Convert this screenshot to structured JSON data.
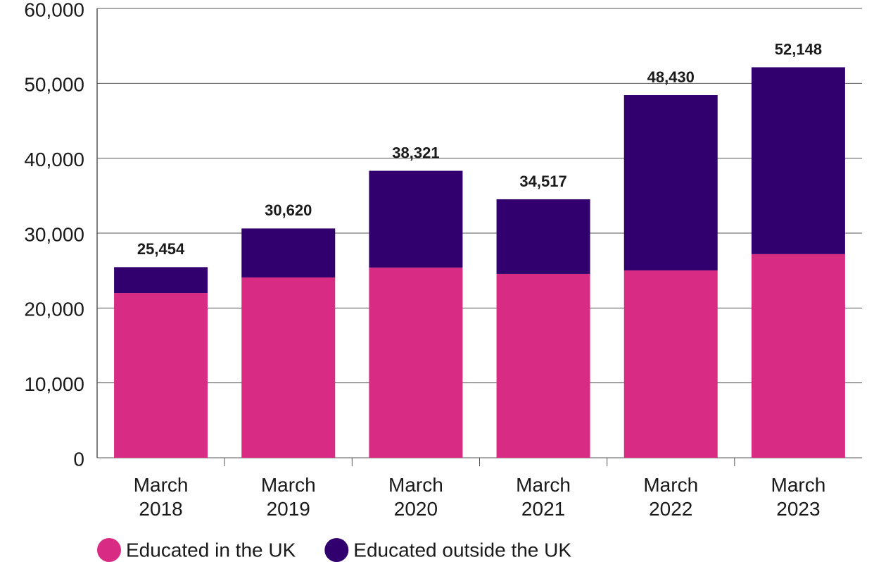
{
  "chart_data": {
    "type": "stacked_bar",
    "categories": [
      "March 2018",
      "March 2019",
      "March 2020",
      "March 2021",
      "March 2022",
      "March 2023"
    ],
    "series": [
      {
        "name": "Educated in the UK",
        "color": "#d82b84",
        "values": [
          22000,
          24080,
          25400,
          24550,
          25020,
          27190
        ]
      },
      {
        "name": "Educated outside the UK",
        "color": "#32006e",
        "values": [
          3454,
          6540,
          12921,
          9967,
          23410,
          24958
        ]
      }
    ],
    "totals": [
      25454,
      30620,
      38321,
      34517,
      48430,
      52148
    ],
    "total_labels": [
      "25,454",
      "30,620",
      "38,321",
      "34,517",
      "48,430",
      "52,148"
    ],
    "ylim": [
      0,
      60000
    ],
    "yticks": [
      0,
      {
        "value": 10000,
        "label": "10,000"
      },
      {
        "value": 20000,
        "label": "20,000"
      },
      {
        "value": 30000,
        "label": "30,000"
      },
      {
        "value": 40000,
        "label": "40,000"
      },
      {
        "value": 50000,
        "label": "50,000"
      },
      {
        "value": 60000,
        "label": "60,000"
      }
    ],
    "grid": true,
    "legend": "bottom"
  }
}
